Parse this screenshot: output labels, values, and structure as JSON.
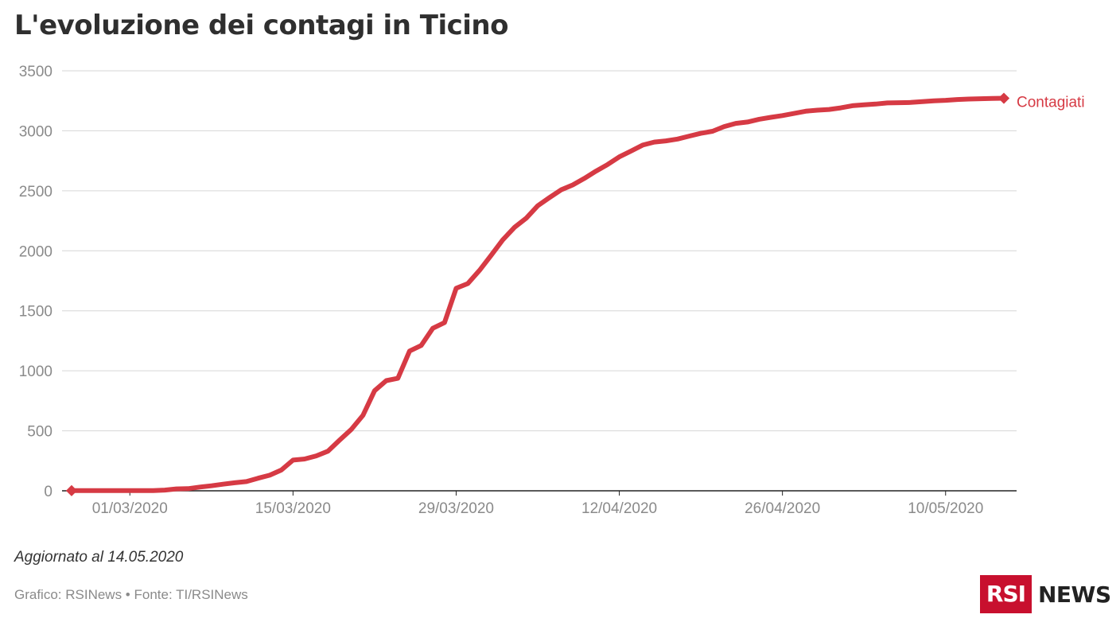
{
  "title": "L'evoluzione dei contagi in Ticino",
  "updated": "Aggiornato al 14.05.2020",
  "credit": "Grafico: RSINews • Fonte: TI/RSINews",
  "logo": {
    "box": "RSI",
    "text": "NEWS"
  },
  "colors": {
    "series": "#d63a44",
    "grid": "#d6d6d6",
    "axis": "#222222",
    "label": "#8a8a8a",
    "logo": "#c8102e"
  },
  "chart_data": {
    "type": "line",
    "title": "L'evoluzione dei contagi in Ticino",
    "xlabel": "",
    "ylabel": "",
    "ylim": [
      0,
      3500
    ],
    "yticks": [
      0,
      500,
      1000,
      1500,
      2000,
      2500,
      3000,
      3500
    ],
    "xticks": [
      "01/03/2020",
      "15/03/2020",
      "29/03/2020",
      "12/04/2020",
      "26/04/2020",
      "10/05/2020"
    ],
    "grid": true,
    "legend": "end-of-line label",
    "x_start": "25/02/2020",
    "x_end": "14/05/2020",
    "series": [
      {
        "name": "Contagiati",
        "color": "#d63a44",
        "values": [
          1,
          1,
          1,
          1,
          1,
          1,
          1,
          2,
          6,
          16,
          18,
          31,
          42,
          55,
          67,
          77,
          105,
          130,
          173,
          256,
          265,
          291,
          330,
          422,
          511,
          629,
          834,
          918,
          937,
          1165,
          1211,
          1354,
          1401,
          1688,
          1727,
          1837,
          1962,
          2091,
          2195,
          2271,
          2375,
          2443,
          2508,
          2549,
          2603,
          2664,
          2719,
          2783,
          2831,
          2881,
          2906,
          2916,
          2931,
          2956,
          2979,
          2996,
          3035,
          3062,
          3073,
          3096,
          3112,
          3127,
          3145,
          3163,
          3172,
          3178,
          3191,
          3209,
          3216,
          3223,
          3232,
          3234,
          3236,
          3243,
          3250,
          3254,
          3261,
          3265,
          3267,
          3270,
          3271
        ]
      }
    ]
  }
}
